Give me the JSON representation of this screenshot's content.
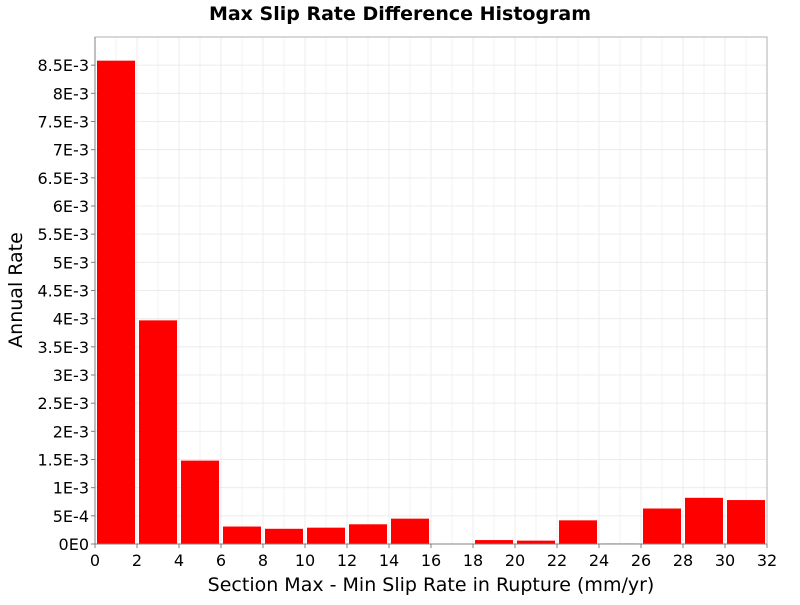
{
  "chart_data": {
    "type": "bar",
    "title": "Max Slip Rate Difference Histogram",
    "xlabel": "Section Max - Min Slip Rate in Rupture (mm/yr)",
    "ylabel": "Annual Rate",
    "xlim": [
      0,
      32
    ],
    "ylim": [
      0,
      0.009
    ],
    "grid": true,
    "bar_color": "#ff0000",
    "bin_width": 2,
    "bins": [
      {
        "x_start": 0,
        "value": 0.00858
      },
      {
        "x_start": 2,
        "value": 0.00397
      },
      {
        "x_start": 4,
        "value": 0.00148
      },
      {
        "x_start": 6,
        "value": 0.00031
      },
      {
        "x_start": 8,
        "value": 0.00027
      },
      {
        "x_start": 10,
        "value": 0.00029
      },
      {
        "x_start": 12,
        "value": 0.00035
      },
      {
        "x_start": 14,
        "value": 0.00045
      },
      {
        "x_start": 16,
        "value": 0.0
      },
      {
        "x_start": 18,
        "value": 7e-05
      },
      {
        "x_start": 20,
        "value": 6e-05
      },
      {
        "x_start": 22,
        "value": 0.00042
      },
      {
        "x_start": 24,
        "value": 1e-05
      },
      {
        "x_start": 26,
        "value": 0.00063
      },
      {
        "x_start": 28,
        "value": 0.00082
      },
      {
        "x_start": 30,
        "value": 0.00078
      }
    ],
    "x_ticks": [
      {
        "value": 0,
        "label": "0"
      },
      {
        "value": 2,
        "label": "2"
      },
      {
        "value": 4,
        "label": "4"
      },
      {
        "value": 6,
        "label": "6"
      },
      {
        "value": 8,
        "label": "8"
      },
      {
        "value": 10,
        "label": "10"
      },
      {
        "value": 12,
        "label": "12"
      },
      {
        "value": 14,
        "label": "14"
      },
      {
        "value": 16,
        "label": "16"
      },
      {
        "value": 18,
        "label": "18"
      },
      {
        "value": 20,
        "label": "20"
      },
      {
        "value": 22,
        "label": "22"
      },
      {
        "value": 24,
        "label": "24"
      },
      {
        "value": 26,
        "label": "26"
      },
      {
        "value": 28,
        "label": "28"
      },
      {
        "value": 30,
        "label": "30"
      },
      {
        "value": 32,
        "label": "32"
      }
    ],
    "y_ticks": [
      {
        "value": 0,
        "label": "0E0"
      },
      {
        "value": 0.0005,
        "label": "5E-4"
      },
      {
        "value": 0.001,
        "label": "1E-3"
      },
      {
        "value": 0.0015,
        "label": "1.5E-3"
      },
      {
        "value": 0.002,
        "label": "2E-3"
      },
      {
        "value": 0.0025,
        "label": "2.5E-3"
      },
      {
        "value": 0.003,
        "label": "3E-3"
      },
      {
        "value": 0.0035,
        "label": "3.5E-3"
      },
      {
        "value": 0.004,
        "label": "4E-3"
      },
      {
        "value": 0.0045,
        "label": "4.5E-3"
      },
      {
        "value": 0.005,
        "label": "5E-3"
      },
      {
        "value": 0.0055,
        "label": "5.5E-3"
      },
      {
        "value": 0.006,
        "label": "6E-3"
      },
      {
        "value": 0.0065,
        "label": "6.5E-3"
      },
      {
        "value": 0.007,
        "label": "7E-3"
      },
      {
        "value": 0.0075,
        "label": "7.5E-3"
      },
      {
        "value": 0.008,
        "label": "8E-3"
      },
      {
        "value": 0.0085,
        "label": "8.5E-3"
      }
    ]
  }
}
